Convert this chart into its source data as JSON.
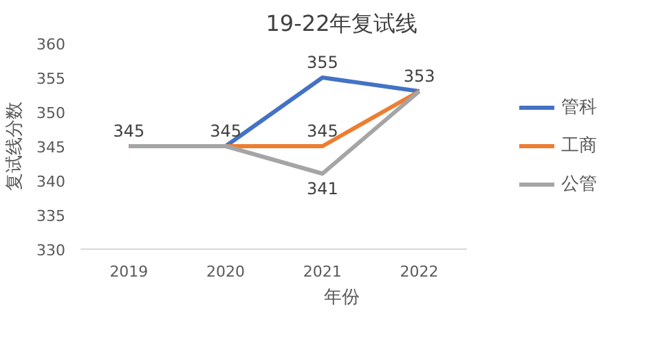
{
  "chart_data": {
    "type": "line",
    "title": "19-22年复试线",
    "xlabel": "年份",
    "ylabel": "复试线分数",
    "categories": [
      "2019",
      "2020",
      "2021",
      "2022"
    ],
    "series": [
      {
        "name": "管科",
        "color": "#4472c4",
        "values": [
          345,
          345,
          355,
          353
        ],
        "value_labels": [
          null,
          null,
          "355",
          null
        ]
      },
      {
        "name": "工商",
        "color": "#ed7d31",
        "values": [
          345,
          345,
          345,
          353
        ],
        "value_labels": [
          null,
          null,
          "345",
          null
        ]
      },
      {
        "name": "公管",
        "color": "#a5a5a5",
        "values": [
          345,
          345,
          341,
          353
        ],
        "value_labels": [
          "345",
          "345",
          "341",
          "353"
        ]
      }
    ],
    "ylim": [
      330,
      360
    ],
    "yticks": [
      330,
      335,
      340,
      345,
      350,
      355,
      360
    ],
    "grid": false,
    "legend": "right",
    "marker": "none",
    "line_style": "solid"
  }
}
